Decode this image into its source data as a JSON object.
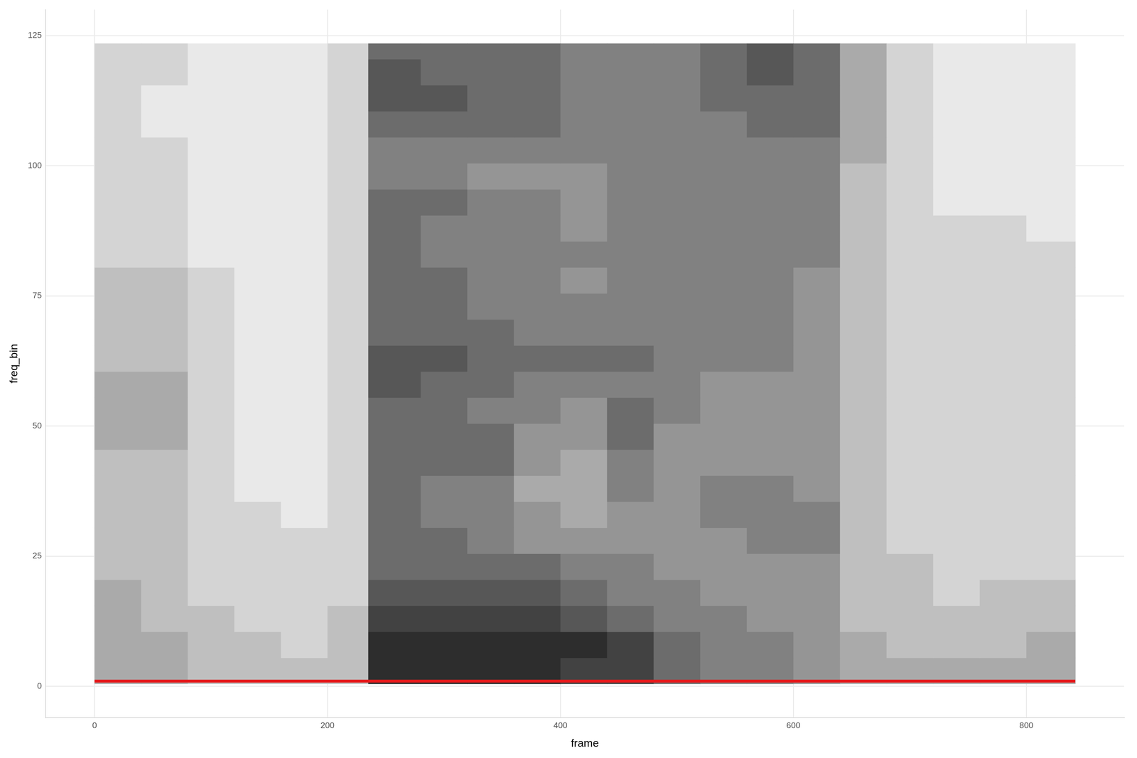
{
  "chart_data": {
    "type": "heatmap",
    "x_label": "frame",
    "y_label": "freq_bin",
    "xlim": [
      -42,
      884
    ],
    "ylim": [
      -6,
      130
    ],
    "xticks": [
      0,
      200,
      400,
      600,
      800
    ],
    "yticks": [
      0,
      25,
      50,
      75,
      100,
      125
    ],
    "grid": true,
    "tick_labels": true,
    "cells": {
      "x_edges": [
        0,
        40,
        80,
        120,
        160,
        200,
        235,
        280,
        320,
        360,
        400,
        440,
        480,
        520,
        560,
        600,
        640,
        680,
        720,
        760,
        800,
        842
      ],
      "y_edges": [
        0.5,
        5.5,
        10.5,
        15.5,
        20.5,
        25.5,
        30.5,
        35.5,
        40.5,
        45.5,
        50.5,
        55.5,
        60.5,
        65.5,
        70.5,
        75.5,
        80.5,
        85.5,
        90.5,
        95.5,
        100.5,
        105.5,
        110.5,
        115.5,
        120.5,
        123.5
      ],
      "zlim": [
        0,
        9
      ],
      "values": [
        [
          3,
          3,
          2,
          2,
          2,
          2,
          9,
          9,
          9,
          9,
          8,
          8,
          6,
          5,
          5,
          4,
          3,
          3,
          3,
          3,
          3
        ],
        [
          3,
          3,
          2,
          2,
          1,
          2,
          9,
          9,
          9,
          9,
          9,
          8,
          6,
          5,
          5,
          4,
          3,
          2,
          2,
          2,
          3
        ],
        [
          3,
          2,
          2,
          1,
          1,
          2,
          8,
          8,
          8,
          8,
          7,
          6,
          5,
          5,
          4,
          4,
          2,
          2,
          2,
          2,
          2
        ],
        [
          3,
          2,
          1,
          1,
          1,
          1,
          7,
          7,
          7,
          7,
          6,
          5,
          5,
          4,
          4,
          4,
          2,
          2,
          1,
          2,
          2
        ],
        [
          2,
          2,
          1,
          1,
          1,
          1,
          6,
          6,
          6,
          6,
          5,
          5,
          4,
          4,
          4,
          4,
          2,
          2,
          1,
          1,
          1
        ],
        [
          2,
          2,
          1,
          1,
          1,
          1,
          6,
          6,
          5,
          4,
          4,
          4,
          4,
          4,
          5,
          5,
          2,
          1,
          1,
          1,
          1
        ],
        [
          2,
          2,
          1,
          1,
          0,
          1,
          6,
          5,
          5,
          4,
          3,
          4,
          4,
          5,
          5,
          5,
          2,
          1,
          1,
          1,
          1
        ],
        [
          2,
          2,
          1,
          0,
          0,
          1,
          6,
          5,
          5,
          3,
          3,
          5,
          4,
          5,
          5,
          4,
          2,
          1,
          1,
          1,
          1
        ],
        [
          2,
          2,
          1,
          0,
          0,
          1,
          6,
          6,
          6,
          4,
          3,
          5,
          4,
          4,
          4,
          4,
          2,
          1,
          1,
          1,
          1
        ],
        [
          3,
          3,
          1,
          0,
          0,
          1,
          6,
          6,
          6,
          4,
          4,
          6,
          4,
          4,
          4,
          4,
          2,
          1,
          1,
          1,
          1
        ],
        [
          3,
          3,
          1,
          0,
          0,
          1,
          6,
          6,
          5,
          5,
          4,
          6,
          5,
          4,
          4,
          4,
          2,
          1,
          1,
          1,
          1
        ],
        [
          3,
          3,
          1,
          0,
          0,
          1,
          7,
          6,
          6,
          5,
          5,
          5,
          5,
          4,
          4,
          4,
          2,
          1,
          1,
          1,
          1
        ],
        [
          2,
          2,
          1,
          0,
          0,
          1,
          7,
          7,
          6,
          6,
          6,
          6,
          5,
          5,
          5,
          4,
          2,
          1,
          1,
          1,
          1
        ],
        [
          2,
          2,
          1,
          0,
          0,
          1,
          6,
          6,
          6,
          5,
          5,
          5,
          5,
          5,
          5,
          4,
          2,
          1,
          1,
          1,
          1
        ],
        [
          2,
          2,
          1,
          0,
          0,
          1,
          6,
          6,
          5,
          5,
          5,
          5,
          5,
          5,
          5,
          4,
          2,
          1,
          1,
          1,
          1
        ],
        [
          2,
          2,
          1,
          0,
          0,
          1,
          6,
          6,
          5,
          5,
          4,
          5,
          5,
          5,
          5,
          4,
          2,
          1,
          1,
          1,
          1
        ],
        [
          1,
          1,
          0,
          0,
          0,
          1,
          6,
          5,
          5,
          5,
          5,
          5,
          5,
          5,
          5,
          5,
          2,
          1,
          1,
          1,
          1
        ],
        [
          1,
          1,
          0,
          0,
          0,
          1,
          6,
          5,
          5,
          5,
          4,
          5,
          5,
          5,
          5,
          5,
          2,
          1,
          1,
          1,
          0
        ],
        [
          1,
          1,
          0,
          0,
          0,
          1,
          6,
          6,
          5,
          5,
          4,
          5,
          5,
          5,
          5,
          5,
          2,
          1,
          0,
          0,
          0
        ],
        [
          1,
          1,
          0,
          0,
          0,
          1,
          5,
          5,
          4,
          4,
          4,
          5,
          5,
          5,
          5,
          5,
          2,
          1,
          0,
          0,
          0
        ],
        [
          1,
          1,
          0,
          0,
          0,
          1,
          5,
          5,
          5,
          5,
          5,
          5,
          5,
          5,
          5,
          5,
          3,
          1,
          0,
          0,
          0
        ],
        [
          1,
          0,
          0,
          0,
          0,
          1,
          6,
          6,
          6,
          6,
          5,
          5,
          5,
          5,
          6,
          6,
          3,
          1,
          0,
          0,
          0
        ],
        [
          1,
          0,
          0,
          0,
          0,
          1,
          7,
          7,
          6,
          6,
          5,
          5,
          5,
          6,
          6,
          6,
          3,
          1,
          0,
          0,
          0
        ],
        [
          1,
          1,
          0,
          0,
          0,
          1,
          7,
          6,
          6,
          6,
          5,
          5,
          5,
          6,
          7,
          6,
          3,
          1,
          0,
          0,
          0
        ],
        [
          1,
          1,
          0,
          0,
          0,
          1,
          6,
          6,
          6,
          6,
          5,
          5,
          5,
          6,
          7,
          6,
          3,
          1,
          0,
          0,
          0
        ]
      ]
    },
    "series": [
      {
        "type": "line",
        "color": "#e41a1c",
        "x": [
          0,
          842
        ],
        "values": [
          1,
          1
        ]
      }
    ]
  }
}
